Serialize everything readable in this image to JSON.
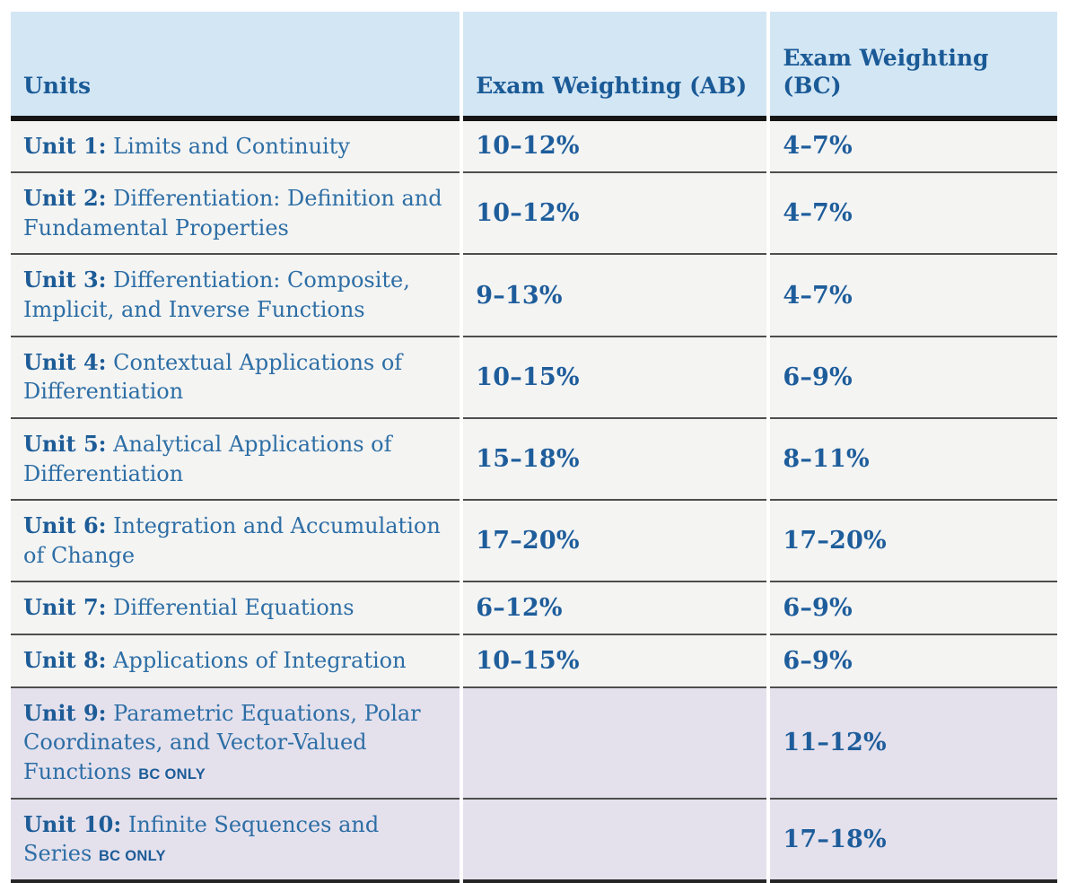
{
  "table": {
    "columns": [
      "Units",
      "Exam Weighting (AB)",
      "Exam Weighting (BC)"
    ],
    "rows": [
      {
        "unit_label": "Unit 1:",
        "unit_title": "Limits and Continuity",
        "ab": "10–12%",
        "bc": "4–7%"
      },
      {
        "unit_label": "Unit 2:",
        "unit_title": "Differentiation: Definition and Fundamental Properties",
        "ab": "10–12%",
        "bc": "4–7%"
      },
      {
        "unit_label": "Unit 3:",
        "unit_title": "Differentiation: Composite, Implicit, and Inverse Functions",
        "ab": "9–13%",
        "bc": "4–7%"
      },
      {
        "unit_label": "Unit 4:",
        "unit_title": "Contextual Applications of Differentiation",
        "ab": "10–15%",
        "bc": "6–9%"
      },
      {
        "unit_label": "Unit 5:",
        "unit_title": "Analytical Applications of Differentiation",
        "ab": "15–18%",
        "bc": "8–11%"
      },
      {
        "unit_label": "Unit 6:",
        "unit_title": "Integration and Accumulation of Change",
        "ab": "17–20%",
        "bc": "17–20%"
      },
      {
        "unit_label": "Unit 7:",
        "unit_title": "Differential Equations",
        "ab": "6–12%",
        "bc": "6–9%"
      },
      {
        "unit_label": "Unit 8:",
        "unit_title": "Applications of Integration",
        "ab": "10–15%",
        "bc": "6–9%"
      },
      {
        "unit_label": "Unit 9:",
        "unit_title": "Parametric Equations, Polar Coordinates, and Vector-Valued Functions",
        "tag": "BC ONLY",
        "ab": "",
        "bc": "11–12%"
      },
      {
        "unit_label": "Unit 10:",
        "unit_title": "Infinite Sequences and Series",
        "tag": "BC ONLY",
        "ab": "",
        "bc": "17–18%"
      }
    ]
  },
  "colors": {
    "header_background": "#d3e6f4",
    "row_background": "#f4f4f3",
    "bc_only_row_background": "#e4e1ed",
    "heading_text_blue": "#1a5a96",
    "bold_text_blue": "#1d5c97",
    "body_text_blue": "#2d6ea5",
    "percent_text_blue": "#1e5d9b",
    "header_rule_black": "#161616",
    "row_rule_gray": "#4e4e4e"
  }
}
